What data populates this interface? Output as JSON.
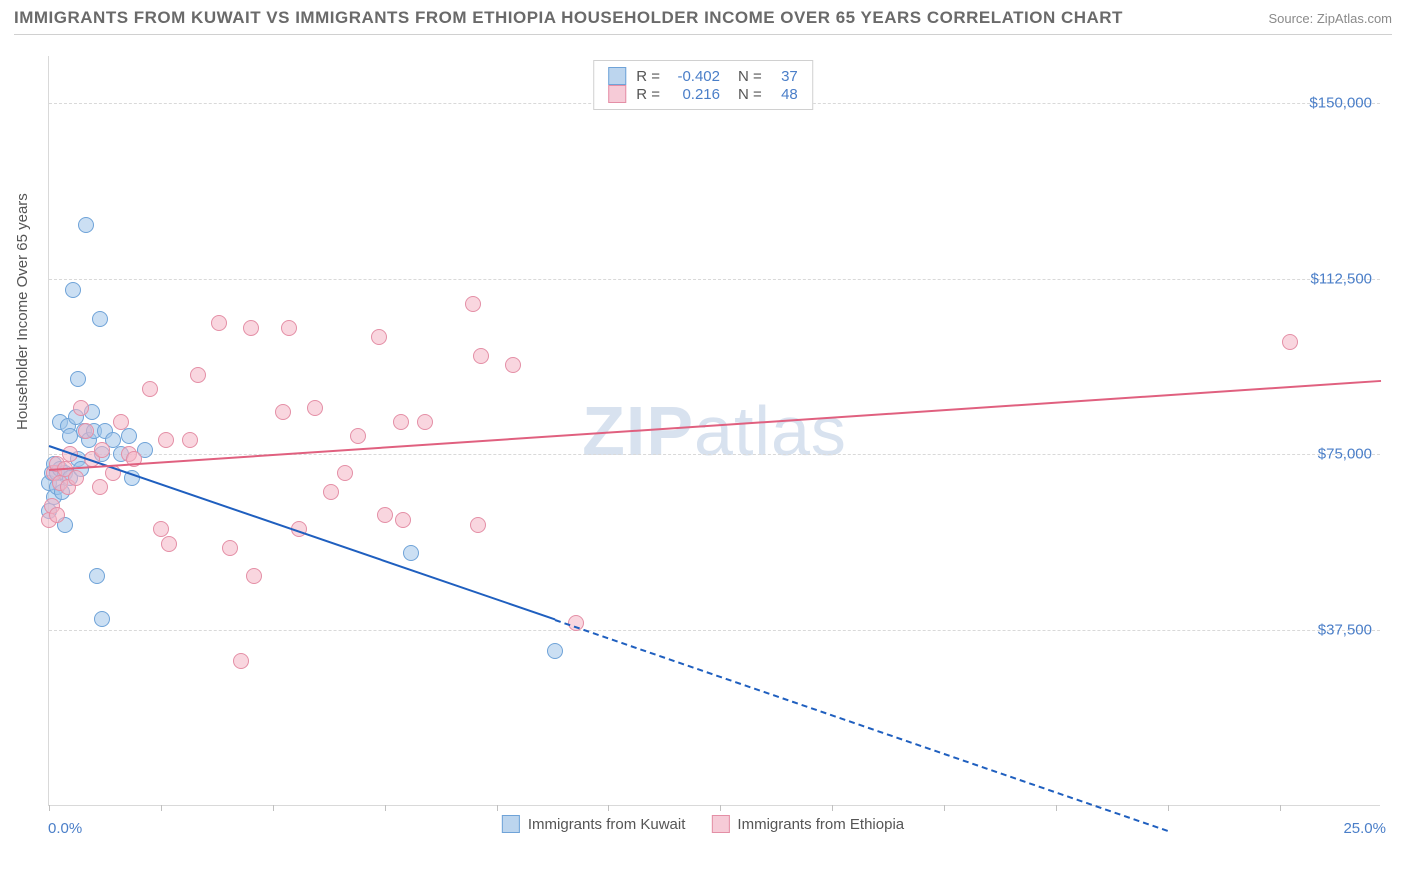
{
  "title": "IMMIGRANTS FROM KUWAIT VS IMMIGRANTS FROM ETHIOPIA HOUSEHOLDER INCOME OVER 65 YEARS CORRELATION CHART",
  "source": "Source: ZipAtlas.com",
  "watermark_a": "ZIP",
  "watermark_b": "atlas",
  "y_axis_label": "Householder Income Over 65 years",
  "chart": {
    "type": "scatter",
    "xlim": [
      0,
      25
    ],
    "ylim": [
      0,
      160000
    ],
    "x_min_label": "0.0%",
    "x_max_label": "25.0%",
    "y_ticks": [
      37500,
      75000,
      112500,
      150000
    ],
    "y_tick_labels": [
      "$37,500",
      "$75,000",
      "$112,500",
      "$150,000"
    ],
    "x_tick_positions": [
      0,
      2.1,
      4.2,
      6.3,
      8.4,
      10.5,
      12.6,
      14.7,
      16.8,
      18.9,
      21,
      23.1
    ],
    "grid_color": "#d9d9d9",
    "background_color": "#ffffff",
    "point_radius": 8,
    "series": [
      {
        "name": "Immigrants from Kuwait",
        "color_fill": "rgba(160,196,234,0.55)",
        "color_stroke": "#6fa3d8",
        "swatch_fill": "#bcd5ee",
        "swatch_border": "#6fa3d8",
        "R": "-0.402",
        "N": "37",
        "trend": {
          "x1": 0,
          "y1": 77000,
          "x2": 9.5,
          "y2": 40000,
          "color": "#1f5fbf",
          "dash_x2": 21,
          "dash_y2": -5000
        },
        "points": [
          [
            0.0,
            69000
          ],
          [
            0.0,
            63000
          ],
          [
            0.05,
            71000
          ],
          [
            0.1,
            73000
          ],
          [
            0.1,
            66000
          ],
          [
            0.15,
            71000
          ],
          [
            0.15,
            68000
          ],
          [
            0.2,
            82000
          ],
          [
            0.2,
            72000
          ],
          [
            0.25,
            67000
          ],
          [
            0.3,
            60000
          ],
          [
            0.3,
            71000
          ],
          [
            0.35,
            81000
          ],
          [
            0.4,
            79000
          ],
          [
            0.4,
            70000
          ],
          [
            0.45,
            110000
          ],
          [
            0.5,
            83000
          ],
          [
            0.55,
            91000
          ],
          [
            0.55,
            74000
          ],
          [
            0.6,
            72000
          ],
          [
            0.65,
            80000
          ],
          [
            0.7,
            124000
          ],
          [
            0.75,
            78000
          ],
          [
            0.8,
            84000
          ],
          [
            0.85,
            80000
          ],
          [
            0.9,
            49000
          ],
          [
            0.95,
            104000
          ],
          [
            1.0,
            40000
          ],
          [
            1.0,
            75000
          ],
          [
            1.05,
            80000
          ],
          [
            1.2,
            78000
          ],
          [
            1.35,
            75000
          ],
          [
            1.5,
            79000
          ],
          [
            1.55,
            70000
          ],
          [
            1.8,
            76000
          ],
          [
            6.8,
            54000
          ],
          [
            9.5,
            33000
          ]
        ]
      },
      {
        "name": "Immigrants from Ethiopia",
        "color_fill": "rgba(244,180,196,0.55)",
        "color_stroke": "#e48fa6",
        "swatch_fill": "#f6cbd7",
        "swatch_border": "#e48fa6",
        "R": "0.216",
        "N": "48",
        "trend": {
          "x1": 0,
          "y1": 72000,
          "x2": 25,
          "y2": 91000,
          "color": "#e0607f"
        },
        "points": [
          [
            0.0,
            61000
          ],
          [
            0.05,
            64000
          ],
          [
            0.1,
            71000
          ],
          [
            0.15,
            73000
          ],
          [
            0.15,
            62000
          ],
          [
            0.2,
            69000
          ],
          [
            0.3,
            72000
          ],
          [
            0.35,
            68000
          ],
          [
            0.4,
            75000
          ],
          [
            0.5,
            70000
          ],
          [
            0.6,
            85000
          ],
          [
            0.7,
            80000
          ],
          [
            0.8,
            74000
          ],
          [
            0.95,
            68000
          ],
          [
            1.0,
            76000
          ],
          [
            1.2,
            71000
          ],
          [
            1.35,
            82000
          ],
          [
            1.5,
            75000
          ],
          [
            1.6,
            74000
          ],
          [
            1.9,
            89000
          ],
          [
            2.1,
            59000
          ],
          [
            2.2,
            78000
          ],
          [
            2.25,
            56000
          ],
          [
            2.65,
            78000
          ],
          [
            2.8,
            92000
          ],
          [
            3.2,
            103000
          ],
          [
            3.4,
            55000
          ],
          [
            3.6,
            31000
          ],
          [
            3.8,
            102000
          ],
          [
            3.85,
            49000
          ],
          [
            4.4,
            84000
          ],
          [
            4.5,
            102000
          ],
          [
            4.7,
            59000
          ],
          [
            5.0,
            85000
          ],
          [
            5.3,
            67000
          ],
          [
            5.55,
            71000
          ],
          [
            5.8,
            79000
          ],
          [
            6.2,
            100000
          ],
          [
            6.3,
            62000
          ],
          [
            6.6,
            82000
          ],
          [
            6.65,
            61000
          ],
          [
            7.05,
            82000
          ],
          [
            7.95,
            107000
          ],
          [
            8.05,
            60000
          ],
          [
            8.1,
            96000
          ],
          [
            8.7,
            94000
          ],
          [
            9.9,
            39000
          ],
          [
            23.3,
            99000
          ]
        ]
      }
    ]
  },
  "legend_bottom": [
    {
      "label": "Immigrants from Kuwait",
      "fill": "#bcd5ee",
      "border": "#6fa3d8"
    },
    {
      "label": "Immigrants from Ethiopia",
      "fill": "#f6cbd7",
      "border": "#e48fa6"
    }
  ],
  "legend_top_labels": {
    "R": "R =",
    "N": "N ="
  }
}
